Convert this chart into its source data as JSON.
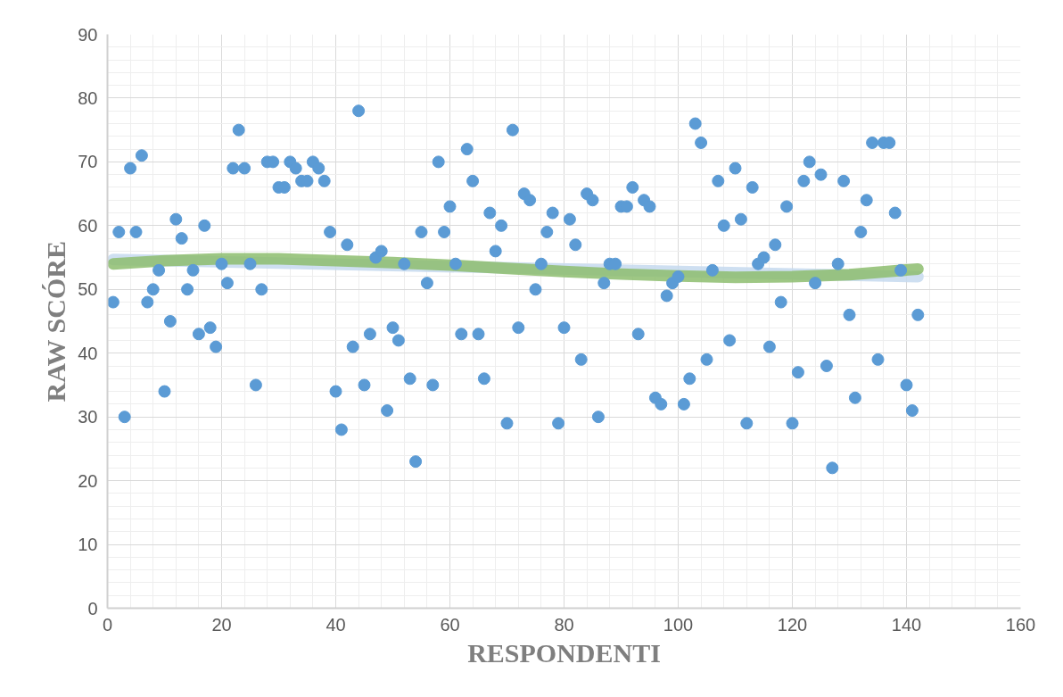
{
  "chart_data": {
    "type": "scatter",
    "xlabel": "RESPONDENTI",
    "ylabel": "RAW SCÓRE",
    "xlim": [
      0,
      160
    ],
    "ylim": [
      0,
      90
    ],
    "xticks": [
      0,
      20,
      40,
      60,
      80,
      100,
      120,
      140,
      160
    ],
    "yticks": [
      0,
      10,
      20,
      30,
      40,
      50,
      60,
      70,
      80,
      90
    ],
    "grid": true,
    "series": [
      {
        "color": "#5b9bd5",
        "marker": "circle",
        "x": [
          1,
          2,
          3,
          4,
          5,
          6,
          7,
          8,
          9,
          10,
          11,
          12,
          13,
          14,
          15,
          16,
          17,
          18,
          19,
          20,
          21,
          22,
          23,
          24,
          25,
          26,
          27,
          28,
          29,
          30,
          31,
          32,
          33,
          34,
          35,
          36,
          37,
          38,
          39,
          40,
          41,
          42,
          43,
          44,
          45,
          46,
          47,
          48,
          49,
          50,
          51,
          52,
          53,
          54,
          55,
          56,
          57,
          58,
          59,
          60,
          61,
          62,
          63,
          64,
          65,
          66,
          67,
          68,
          69,
          70,
          71,
          72,
          73,
          74,
          75,
          76,
          77,
          78,
          79,
          80,
          81,
          82,
          83,
          84,
          85,
          86,
          87,
          88,
          89,
          90,
          91,
          92,
          93,
          94,
          95,
          96,
          97,
          98,
          99,
          100,
          101,
          102,
          103,
          104,
          105,
          106,
          107,
          108,
          109,
          110,
          111,
          112,
          113,
          114,
          115,
          116,
          117,
          118,
          119,
          120,
          121,
          122,
          123,
          124,
          125,
          126,
          127,
          128,
          129,
          130,
          131,
          132,
          133,
          134,
          135,
          136,
          137,
          138,
          139,
          140,
          141,
          142
        ],
        "values": [
          48,
          59,
          30,
          69,
          59,
          71,
          48,
          50,
          53,
          34,
          45,
          61,
          58,
          50,
          53,
          43,
          60,
          44,
          41,
          54,
          51,
          69,
          75,
          69,
          54,
          35,
          50,
          70,
          70,
          66,
          66,
          70,
          69,
          67,
          67,
          70,
          69,
          67,
          59,
          34,
          28,
          57,
          41,
          78,
          35,
          43,
          55,
          56,
          31,
          44,
          42,
          54,
          36,
          23,
          59,
          51,
          35,
          70,
          59,
          63,
          54,
          43,
          72,
          67,
          43,
          36,
          62,
          56,
          60,
          29,
          75,
          44,
          65,
          64,
          50,
          54,
          59,
          62,
          29,
          44,
          61,
          57,
          39,
          65,
          64,
          30,
          51,
          54,
          54,
          63,
          63,
          66,
          43,
          64,
          63,
          33,
          32,
          49,
          51,
          52,
          32,
          36,
          76,
          73,
          39,
          53,
          67,
          60,
          42,
          69,
          61,
          29,
          66,
          54,
          55,
          41,
          57,
          48,
          63,
          29,
          37,
          67,
          70,
          51,
          68,
          38,
          22,
          54,
          67,
          46,
          33,
          59,
          64,
          73,
          39,
          73,
          73,
          62,
          53,
          35,
          31,
          46
        ]
      },
      {
        "type": "line",
        "color": "#c6d9ef",
        "x": [
          1,
          142
        ],
        "values": [
          54.7,
          52.0
        ]
      },
      {
        "type": "line",
        "color": "#8dbd6e",
        "x": [
          1,
          10,
          20,
          30,
          40,
          50,
          60,
          70,
          80,
          90,
          100,
          110,
          120,
          130,
          142
        ],
        "values": [
          54,
          54.5,
          54.8,
          54.8,
          54.5,
          54.2,
          53.8,
          53.3,
          52.8,
          52.4,
          52.1,
          51.9,
          52,
          52.3,
          53.2
        ]
      }
    ]
  }
}
